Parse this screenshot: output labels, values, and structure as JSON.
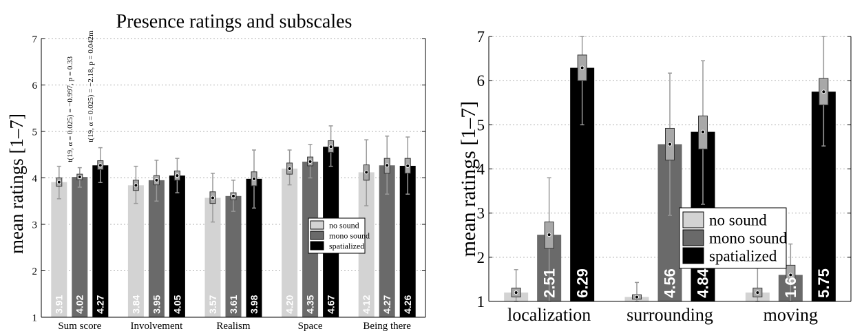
{
  "colors": {
    "no_sound": "#d3d3d3",
    "mono_sound": "#6a6a6a",
    "spatialized": "#000000",
    "grid": "#b0b0b0",
    "whisker": "#999999",
    "box": "#a8a8a8"
  },
  "chart_data": [
    {
      "type": "bar",
      "title": "Presence ratings and subscales",
      "ylabel": "mean ratings [1–7]",
      "ylim": [
        1,
        7
      ],
      "yticks": [
        1,
        2,
        3,
        4,
        5,
        6,
        7
      ],
      "grid": true,
      "legend_position": "right",
      "categories": [
        "Sum score",
        "Involvement",
        "Realism",
        "Space",
        "Being there"
      ],
      "series": [
        {
          "name": "no sound",
          "color_key": "no_sound",
          "values": [
            3.91,
            3.84,
            3.57,
            4.2,
            4.12
          ],
          "labels": [
            "3.91",
            "3.84",
            "3.57",
            "4.20",
            "4.12"
          ],
          "err_low": [
            3.55,
            3.45,
            3.05,
            3.85,
            3.4
          ],
          "err_high": [
            4.25,
            4.25,
            4.1,
            4.6,
            4.82
          ],
          "box_low": [
            3.82,
            3.73,
            3.45,
            4.08,
            3.95
          ],
          "box_high": [
            4.0,
            3.95,
            3.7,
            4.32,
            4.28
          ]
        },
        {
          "name": "mono sound",
          "color_key": "mono_sound",
          "values": [
            4.02,
            3.95,
            3.61,
            4.35,
            4.27
          ],
          "labels": [
            "4.02",
            "3.95",
            "3.61",
            "4.35",
            "4.27"
          ],
          "err_low": [
            3.8,
            3.5,
            3.28,
            4.0,
            3.65
          ],
          "err_high": [
            4.22,
            4.38,
            3.95,
            4.72,
            4.9
          ],
          "box_low": [
            3.96,
            3.85,
            3.53,
            4.26,
            4.1
          ],
          "box_high": [
            4.08,
            4.05,
            3.68,
            4.45,
            4.42
          ]
        },
        {
          "name": "spatialized",
          "color_key": "spatialized",
          "values": [
            4.27,
            4.05,
            3.98,
            4.67,
            4.26
          ],
          "labels": [
            "4.27",
            "4.05",
            "3.98",
            "4.67",
            "4.26"
          ],
          "err_low": [
            3.9,
            3.68,
            3.35,
            4.25,
            3.65
          ],
          "err_high": [
            4.65,
            4.42,
            4.6,
            5.12,
            4.88
          ],
          "box_low": [
            4.18,
            3.95,
            3.83,
            4.55,
            4.1
          ],
          "box_high": [
            4.37,
            4.15,
            4.13,
            4.8,
            4.42
          ]
        }
      ],
      "annotations": [
        {
          "text": "t(19, α = 0.025) = −0.997, p = 0.33",
          "category": 0,
          "between": [
            0,
            1
          ]
        },
        {
          "text": "t(19, α = 0.025) = −2.18, p = 0.042m",
          "category": 0,
          "between": [
            1,
            2
          ]
        }
      ]
    },
    {
      "type": "bar",
      "title": "",
      "ylabel": "mean ratings [1–7]",
      "ylim": [
        1,
        7
      ],
      "yticks": [
        1,
        2,
        3,
        4,
        5,
        6,
        7
      ],
      "grid": true,
      "legend_position": "center-right",
      "categories": [
        "localization",
        "surrounding",
        "moving"
      ],
      "series": [
        {
          "name": "no sound",
          "color_key": "no_sound",
          "values": [
            1.2,
            1.1,
            1.2
          ],
          "labels": [
            "",
            "",
            ""
          ],
          "err_low": [
            1.0,
            1.0,
            1.0
          ],
          "err_high": [
            1.72,
            1.43,
            1.75
          ],
          "box_low": [
            1.1,
            1.05,
            1.1
          ],
          "box_high": [
            1.3,
            1.15,
            1.3
          ]
        },
        {
          "name": "mono sound",
          "color_key": "mono_sound",
          "values": [
            2.51,
            4.56,
            1.6
          ],
          "labels": [
            "2.51",
            "4.56",
            "1.6"
          ],
          "err_low": [
            1.0,
            2.95,
            1.0
          ],
          "err_high": [
            3.8,
            6.17,
            2.3
          ],
          "box_low": [
            2.2,
            4.2,
            1.4
          ],
          "box_high": [
            2.8,
            4.92,
            1.82
          ]
        },
        {
          "name": "spatialized",
          "color_key": "spatialized",
          "values": [
            6.29,
            4.84,
            5.75
          ],
          "labels": [
            "6.29",
            "4.84",
            "5.75"
          ],
          "err_low": [
            5.0,
            3.2,
            4.52
          ],
          "err_high": [
            7.0,
            6.45,
            7.0
          ],
          "box_low": [
            6.0,
            4.45,
            5.45
          ],
          "box_high": [
            6.58,
            5.2,
            6.05
          ]
        }
      ]
    }
  ]
}
